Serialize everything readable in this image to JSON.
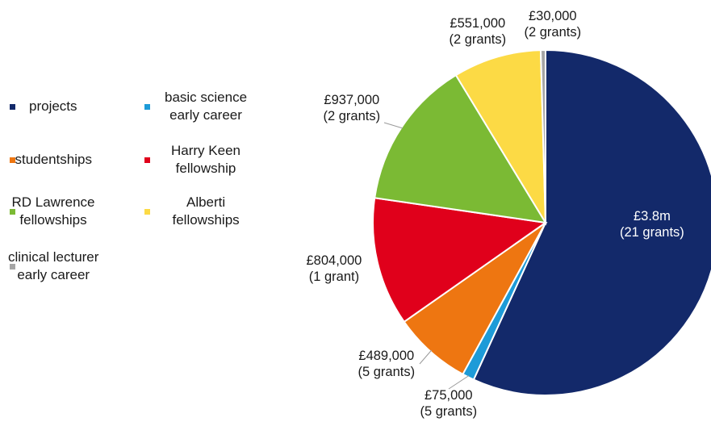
{
  "chart_data": {
    "type": "pie",
    "slices": [
      {
        "category": "projects",
        "value": 3800000,
        "value_label": "£3.8m",
        "grants_label": "(21 grants)",
        "color": "#13296A"
      },
      {
        "category": "basic science early career",
        "value": 75000,
        "value_label": "£75,000",
        "grants_label": "(5 grants)",
        "color": "#1D9BD8"
      },
      {
        "category": "studentships",
        "value": 489000,
        "value_label": "£489,000",
        "grants_label": "(5 grants)",
        "color": "#EE7611"
      },
      {
        "category": "Harry Keen fellowship",
        "value": 804000,
        "value_label": "£804,000",
        "grants_label": "(1 grant)",
        "color": "#E0001B"
      },
      {
        "category": "RD Lawrence fellowships",
        "value": 937000,
        "value_label": "£937,000",
        "grants_label": "(2 grants)",
        "color": "#7BBA34"
      },
      {
        "category": "Alberti fellowships",
        "value": 551000,
        "value_label": "£551,000",
        "grants_label": "(2 grants)",
        "color": "#FCDA45"
      },
      {
        "category": "clinical lecturer early career",
        "value": 30000,
        "value_label": "£30,000",
        "grants_label": "(2 grants)",
        "color": "#A5A5A5"
      }
    ],
    "legend": {
      "placement": "left",
      "columns": [
        [
          "projects",
          "studentships",
          "RD Lawrence fellowships",
          "clinical lecturer early career"
        ],
        [
          "basic science early career",
          "Harry Keen fellowship",
          "Alberti fellowships"
        ]
      ]
    },
    "legend_lines": {
      "projects": [
        "projects"
      ],
      "studentships": [
        "studentships"
      ],
      "RD Lawrence fellowships": [
        "RD Lawrence",
        "fellowships"
      ],
      "clinical lecturer early career": [
        "clinical lecturer",
        "early career"
      ],
      "basic science early career": [
        "basic science",
        "early career"
      ],
      "Harry Keen fellowship": [
        "Harry Keen",
        "fellowship"
      ],
      "Alberti fellowships": [
        "Alberti",
        "fellowships"
      ]
    }
  }
}
